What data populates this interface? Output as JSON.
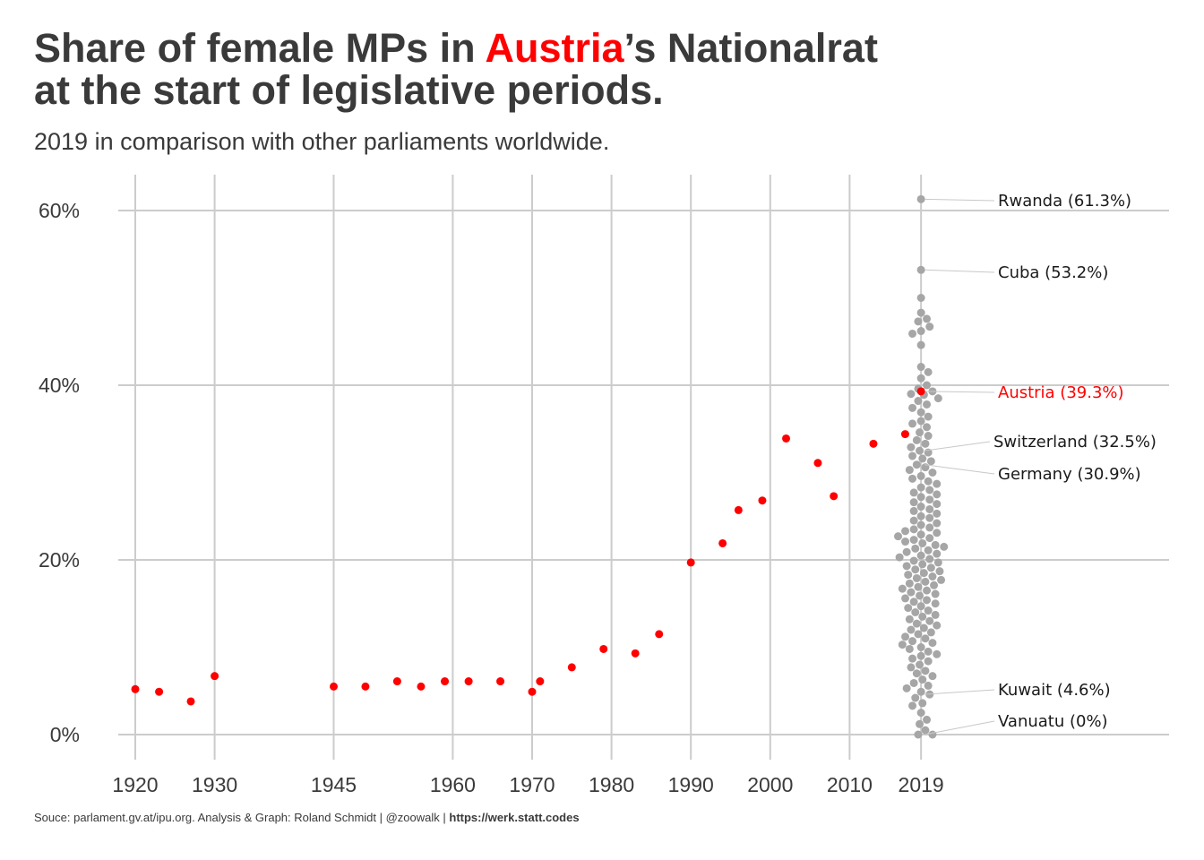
{
  "title": {
    "line1_pre": "Share of female MPs in ",
    "line1_highlight": "Austria",
    "line1_post": "’s Nationalrat",
    "line2": "at the start of legislative periods."
  },
  "subtitle": "2019 in comparison with other parliaments worldwide.",
  "caption": {
    "text": "Souce: parlament.gv.at/ipu.org. Analysis & Graph: Roland Schmidt | @zoowalk | ",
    "link": "https://werk.statt.codes"
  },
  "colors": {
    "austria": "#ff0000",
    "world": "#a6a6a6",
    "grid": "#cccccc",
    "text": "#3a3a3a"
  },
  "chart_data": {
    "type": "scatter",
    "xlabel": "",
    "ylabel": "",
    "xlim": [
      1920,
      2019
    ],
    "ylim": [
      0,
      60
    ],
    "x_ticks": [
      1920,
      1930,
      1945,
      1960,
      1970,
      1980,
      1990,
      2000,
      2010,
      2019
    ],
    "y_ticks": [
      {
        "value": 0,
        "label": "0%"
      },
      {
        "value": 20,
        "label": "20%"
      },
      {
        "value": 40,
        "label": "40%"
      },
      {
        "value": 60,
        "label": "60%"
      }
    ],
    "grid": true,
    "austria_series": {
      "color": "#ff0000",
      "x": [
        1920,
        1923,
        1927,
        1930,
        1945,
        1949,
        1953,
        1956,
        1959,
        1962,
        1966,
        1970,
        1971,
        1975,
        1979,
        1983,
        1986,
        1990,
        1994,
        1996,
        1999,
        2002,
        2006,
        2008,
        2013,
        2017,
        2019
      ],
      "y": [
        5.2,
        4.9,
        3.8,
        6.7,
        5.5,
        5.5,
        6.1,
        5.5,
        6.1,
        6.1,
        6.1,
        4.9,
        6.1,
        7.7,
        9.8,
        9.3,
        11.5,
        19.7,
        21.9,
        25.7,
        26.8,
        33.9,
        31.1,
        27.3,
        33.3,
        34.4,
        39.3
      ]
    },
    "world_2019": {
      "color": "#a6a6a6",
      "x": 2019,
      "y": [
        61.3,
        53.2,
        50.0,
        48.3,
        47.6,
        47.3,
        46.7,
        46.2,
        45.9,
        44.6,
        42.1,
        41.5,
        40.8,
        40.0,
        39.6,
        39.3,
        39.0,
        38.9,
        38.5,
        38.2,
        37.8,
        37.4,
        36.9,
        36.4,
        35.9,
        35.6,
        35.2,
        34.6,
        34.2,
        33.7,
        33.3,
        32.9,
        32.5,
        32.3,
        31.9,
        31.6,
        31.3,
        30.9,
        30.6,
        30.3,
        30.0,
        29.6,
        29.3,
        29.0,
        28.7,
        28.3,
        28.0,
        27.7,
        27.5,
        27.2,
        26.9,
        26.6,
        26.4,
        26.1,
        25.8,
        25.6,
        25.3,
        25.0,
        24.8,
        24.5,
        24.2,
        24.0,
        23.7,
        23.5,
        23.3,
        23.1,
        22.9,
        22.7,
        22.5,
        22.3,
        22.1,
        21.9,
        21.7,
        21.5,
        21.3,
        21.1,
        20.9,
        20.7,
        20.5,
        20.3,
        20.1,
        19.9,
        19.7,
        19.5,
        19.3,
        19.1,
        18.9,
        18.7,
        18.5,
        18.3,
        18.1,
        17.9,
        17.7,
        17.5,
        17.3,
        17.1,
        16.9,
        16.7,
        16.5,
        16.3,
        16.1,
        15.9,
        15.6,
        15.4,
        15.2,
        15.0,
        14.7,
        14.5,
        14.2,
        14.0,
        13.7,
        13.5,
        13.2,
        13.0,
        12.7,
        12.5,
        12.2,
        12.0,
        11.7,
        11.5,
        11.2,
        11.0,
        10.7,
        10.5,
        10.3,
        10.0,
        9.8,
        9.5,
        9.2,
        9.0,
        8.7,
        8.4,
        8.0,
        7.7,
        7.3,
        7.0,
        6.7,
        6.3,
        5.9,
        5.6,
        5.3,
        4.9,
        4.6,
        4.2,
        3.6,
        3.3,
        2.5,
        1.7,
        1.2,
        0.5,
        0.0,
        0.0
      ]
    },
    "annotations": [
      {
        "label": "Rwanda (61.3%)",
        "value": 61.3,
        "color": "#1a1a1a"
      },
      {
        "label": "Cuba (53.2%)",
        "value": 53.2,
        "color": "#1a1a1a"
      },
      {
        "label": "Austria (39.3%)",
        "value": 39.3,
        "color": "#ff0000"
      },
      {
        "label": "Switzerland (32.5%)",
        "value": 32.5,
        "color": "#1a1a1a"
      },
      {
        "label": "Germany (30.9%)",
        "value": 30.9,
        "color": "#1a1a1a"
      },
      {
        "label": "Kuwait (4.6%)",
        "value": 4.6,
        "color": "#1a1a1a"
      },
      {
        "label": "Vanuatu (0%)",
        "value": 0.0,
        "color": "#1a1a1a"
      }
    ]
  }
}
